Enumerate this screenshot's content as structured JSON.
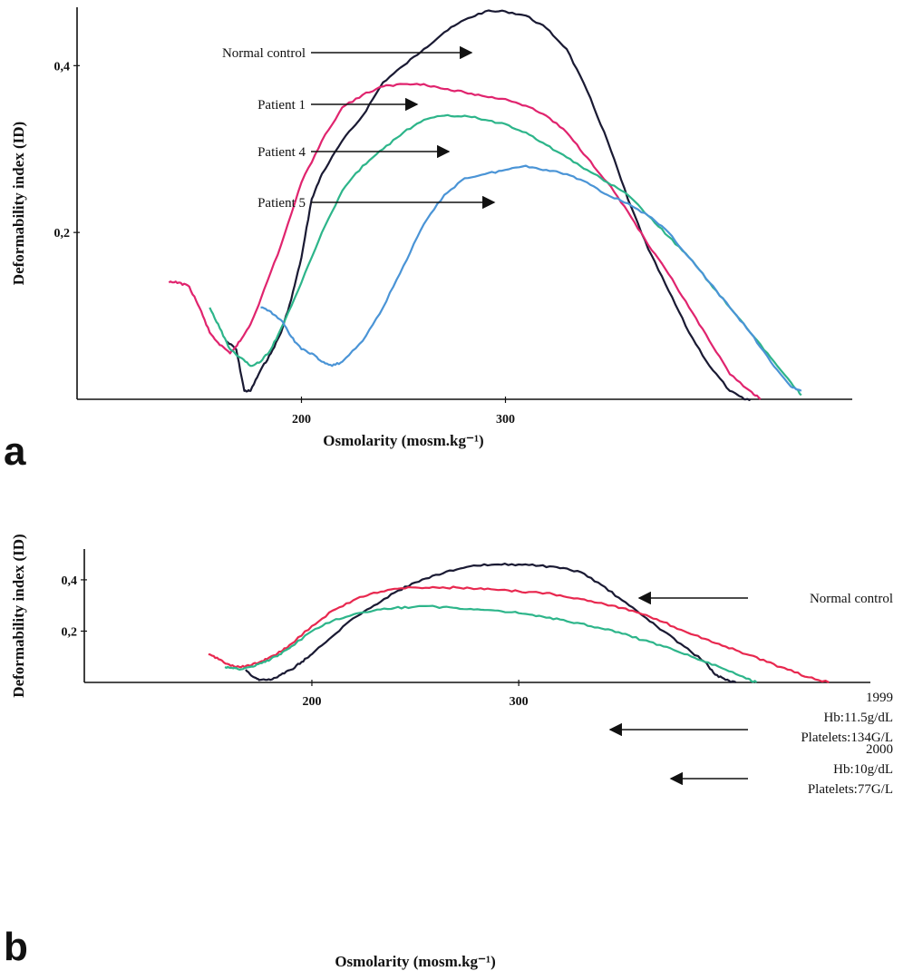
{
  "chart_data": [
    {
      "type": "line",
      "panel": "a",
      "xlabel": "Osmolarity (mosm.kg⁻¹)",
      "ylabel": "Deformability index (ID)",
      "xlim": [
        90,
        470
      ],
      "ylim": [
        0,
        0.47
      ],
      "x_ticks": [
        {
          "value": 200,
          "label": "200"
        },
        {
          "value": 300,
          "label": "300"
        }
      ],
      "y_ticks": [
        {
          "value": 0.2,
          "label": "0,2"
        },
        {
          "value": 0.4,
          "label": "0,4"
        }
      ],
      "series": [
        {
          "name": "Normal control",
          "color": "#1a1a33",
          "x": [
            163,
            168,
            172,
            175,
            180,
            185,
            190,
            195,
            200,
            205,
            210,
            220,
            230,
            240,
            250,
            260,
            270,
            280,
            290,
            300,
            310,
            320,
            330,
            340,
            350,
            360,
            370,
            380,
            390,
            400,
            410,
            417,
            420
          ],
          "y": [
            0.07,
            0.06,
            0.01,
            0.01,
            0.035,
            0.055,
            0.08,
            0.12,
            0.17,
            0.24,
            0.27,
            0.31,
            0.34,
            0.38,
            0.4,
            0.42,
            0.44,
            0.455,
            0.465,
            0.465,
            0.46,
            0.445,
            0.42,
            0.37,
            0.31,
            0.24,
            0.18,
            0.13,
            0.08,
            0.04,
            0.01,
            0.0,
            0.0
          ]
        },
        {
          "name": "Patient 1",
          "color": "#e0246e",
          "x": [
            135,
            140,
            145,
            150,
            155,
            160,
            165,
            170,
            175,
            180,
            190,
            200,
            210,
            220,
            230,
            240,
            250,
            260,
            270,
            280,
            290,
            300,
            310,
            320,
            330,
            340,
            350,
            360,
            370,
            380,
            390,
            400,
            410,
            420,
            425
          ],
          "y": [
            0.14,
            0.14,
            0.135,
            0.11,
            0.08,
            0.065,
            0.055,
            0.07,
            0.09,
            0.12,
            0.185,
            0.26,
            0.31,
            0.35,
            0.365,
            0.375,
            0.378,
            0.378,
            0.372,
            0.368,
            0.363,
            0.36,
            0.352,
            0.34,
            0.32,
            0.29,
            0.26,
            0.225,
            0.185,
            0.15,
            0.11,
            0.07,
            0.03,
            0.01,
            0.0
          ]
        },
        {
          "name": "Patient 4",
          "color": "#2db58a",
          "x": [
            155,
            160,
            165,
            170,
            175,
            180,
            185,
            190,
            200,
            210,
            220,
            230,
            240,
            250,
            260,
            270,
            280,
            290,
            300,
            310,
            320,
            330,
            340,
            350,
            360,
            370,
            380,
            390,
            400,
            410,
            420,
            430,
            440,
            445
          ],
          "y": [
            0.11,
            0.085,
            0.06,
            0.05,
            0.04,
            0.045,
            0.06,
            0.085,
            0.14,
            0.2,
            0.25,
            0.28,
            0.3,
            0.32,
            0.335,
            0.34,
            0.34,
            0.335,
            0.33,
            0.32,
            0.305,
            0.29,
            0.275,
            0.26,
            0.245,
            0.22,
            0.195,
            0.17,
            0.14,
            0.11,
            0.08,
            0.05,
            0.02,
            0.005
          ]
        },
        {
          "name": "Patient 5",
          "color": "#4a94d6",
          "x": [
            180,
            185,
            190,
            195,
            200,
            205,
            210,
            215,
            220,
            230,
            240,
            250,
            260,
            270,
            280,
            290,
            300,
            310,
            320,
            330,
            340,
            350,
            360,
            370,
            380,
            390,
            400,
            410,
            420,
            430,
            440,
            445
          ],
          "y": [
            0.11,
            0.105,
            0.095,
            0.075,
            0.06,
            0.055,
            0.045,
            0.04,
            0.045,
            0.07,
            0.11,
            0.16,
            0.21,
            0.245,
            0.265,
            0.27,
            0.275,
            0.28,
            0.275,
            0.27,
            0.26,
            0.245,
            0.235,
            0.22,
            0.2,
            0.17,
            0.14,
            0.11,
            0.08,
            0.045,
            0.015,
            0.01
          ]
        }
      ],
      "annotations": [
        {
          "text": "Normal control",
          "target_series": "Normal control"
        },
        {
          "text": "Patient 1",
          "target_series": "Patient 1"
        },
        {
          "text": "Patient 4",
          "target_series": "Patient 4"
        },
        {
          "text": "Patient 5",
          "target_series": "Patient 5"
        }
      ]
    },
    {
      "type": "line",
      "panel": "b",
      "xlabel": "Osmolarity (mosm.kg⁻¹)",
      "ylabel": "Deformability index (ID)",
      "xlim": [
        90,
        470
      ],
      "ylim": [
        0,
        0.52
      ],
      "x_ticks": [
        {
          "value": 200,
          "label": "200"
        },
        {
          "value": 300,
          "label": "300"
        }
      ],
      "y_ticks": [
        {
          "value": 0.2,
          "label": "0,2"
        },
        {
          "value": 0.4,
          "label": "0,4"
        }
      ],
      "series": [
        {
          "name": "Normal control",
          "color": "#1a1a33",
          "x": [
            168,
            172,
            175,
            180,
            185,
            190,
            195,
            200,
            210,
            220,
            230,
            240,
            250,
            260,
            270,
            280,
            290,
            300,
            310,
            320,
            330,
            340,
            350,
            360,
            370,
            380,
            390,
            395,
            400,
            405
          ],
          "y": [
            0.05,
            0.02,
            0.01,
            0.01,
            0.03,
            0.05,
            0.08,
            0.11,
            0.18,
            0.25,
            0.3,
            0.35,
            0.39,
            0.42,
            0.44,
            0.455,
            0.46,
            0.46,
            0.455,
            0.445,
            0.43,
            0.38,
            0.32,
            0.26,
            0.2,
            0.14,
            0.08,
            0.03,
            0.01,
            0.0
          ]
        },
        {
          "name": "1999",
          "color": "#e8284f",
          "x": [
            150,
            155,
            160,
            165,
            170,
            175,
            180,
            185,
            190,
            200,
            210,
            220,
            230,
            240,
            250,
            260,
            270,
            280,
            290,
            300,
            310,
            320,
            330,
            340,
            350,
            360,
            370,
            380,
            390,
            400,
            410,
            420,
            430,
            440,
            450
          ],
          "y": [
            0.11,
            0.09,
            0.07,
            0.06,
            0.065,
            0.08,
            0.1,
            0.12,
            0.15,
            0.22,
            0.28,
            0.32,
            0.35,
            0.365,
            0.37,
            0.37,
            0.37,
            0.365,
            0.36,
            0.355,
            0.35,
            0.34,
            0.325,
            0.31,
            0.29,
            0.265,
            0.235,
            0.2,
            0.17,
            0.14,
            0.11,
            0.08,
            0.05,
            0.02,
            0.0
          ]
        },
        {
          "name": "2000",
          "color": "#2db58a",
          "x": [
            158,
            162,
            165,
            170,
            175,
            180,
            185,
            190,
            200,
            210,
            220,
            230,
            240,
            250,
            260,
            270,
            280,
            290,
            300,
            310,
            320,
            330,
            340,
            350,
            360,
            370,
            380,
            390,
            400,
            410,
            415
          ],
          "y": [
            0.06,
            0.055,
            0.05,
            0.06,
            0.075,
            0.09,
            0.11,
            0.14,
            0.2,
            0.24,
            0.265,
            0.28,
            0.29,
            0.295,
            0.295,
            0.29,
            0.285,
            0.28,
            0.27,
            0.26,
            0.245,
            0.23,
            0.21,
            0.19,
            0.165,
            0.14,
            0.11,
            0.08,
            0.05,
            0.015,
            0.0
          ]
        }
      ],
      "annotations": [
        {
          "lines": [
            "Normal control"
          ],
          "target_series": "Normal control"
        },
        {
          "lines": [
            "1999",
            "Hb:11.5g/dL",
            "Platelets:134G/L"
          ],
          "target_series": "1999"
        },
        {
          "lines": [
            "2000",
            "Hb:10g/dL",
            "Platelets:77G/L"
          ],
          "target_series": "2000"
        }
      ]
    }
  ],
  "panel_letters": [
    "a",
    "b"
  ]
}
